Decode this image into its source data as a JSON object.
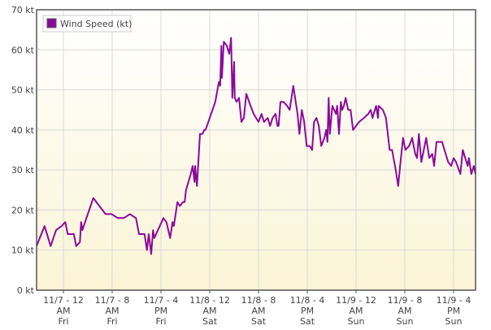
{
  "chart_data": {
    "type": "line",
    "series": [
      {
        "name": "Wind Speed (kt)",
        "color": "#8b0a9b",
        "x": [
          -4.4,
          -3.1,
          -2.1,
          -1.2,
          -0.3,
          0.3,
          0.7,
          1.7,
          2.1,
          2.7,
          2.9,
          3.1,
          4.9,
          6.9,
          7.9,
          8.9,
          9.9,
          10.9,
          11.9,
          12.4,
          13.3,
          13.7,
          14,
          14.4,
          14.7,
          14.9,
          16.4,
          16.9,
          17.5,
          17.9,
          18.1,
          18.7,
          19.1,
          19.6,
          19.9,
          20.1,
          20.9,
          21.2,
          21.5,
          21.6,
          21.9,
          22.4,
          22.8,
          23.1,
          23.3,
          24,
          24.9,
          25.5,
          25.7,
          25.9,
          26,
          26.3,
          26.8,
          27.2,
          27.5,
          27.7,
          28,
          28.1,
          28.4,
          28.8,
          29.2,
          29.6,
          30,
          30.7,
          31.2,
          32,
          32.5,
          32.9,
          33.5,
          33.9,
          34.3,
          34.8,
          35.1,
          35.3,
          35.6,
          36.1,
          36.7,
          37.1,
          37.7,
          38.4,
          38.7,
          39.1,
          39.5,
          39.9,
          40.4,
          40.8,
          41.1,
          41.5,
          41.9,
          42.3,
          42.8,
          43.1,
          43.3,
          43.5,
          43.7,
          44.1,
          44.7,
          44.9,
          45.2,
          45.5,
          45.7,
          46,
          46.3,
          46.7,
          47.1,
          47.5,
          48,
          48.5,
          49.3,
          50,
          50.4,
          50.7,
          50.9,
          51.3,
          51.6,
          51.7,
          52.4,
          52.9,
          53.5,
          53.9,
          54.5,
          54.9,
          55.3,
          55.7,
          56.1,
          56.7,
          57.2,
          57.7,
          58,
          58.3,
          58.7,
          59.1,
          59.5,
          60,
          60.5,
          60.8,
          61.2,
          61.7,
          62.1,
          62.7,
          63.1,
          63.6,
          64,
          64.4,
          65.1,
          65.5,
          65.9,
          66.3,
          66.5,
          66.9,
          67.3,
          67.6
        ],
        "values": [
          11,
          16,
          11,
          15,
          16,
          17,
          14,
          14,
          11,
          12,
          17,
          15,
          23,
          19,
          19,
          18,
          18,
          19,
          18,
          14,
          14,
          10,
          14,
          9,
          15,
          13,
          18,
          17,
          13,
          17,
          16,
          22,
          21,
          22,
          22,
          25,
          29,
          31,
          27,
          31,
          26,
          39,
          39,
          40,
          40,
          43,
          47,
          52,
          51,
          61,
          53,
          62,
          61,
          59,
          63,
          48,
          57,
          48,
          47,
          48,
          42,
          43,
          49,
          46,
          44,
          42,
          44,
          42,
          43,
          41,
          43,
          44,
          41,
          41,
          47,
          47,
          46,
          45,
          51,
          44,
          39,
          45,
          42,
          36,
          36,
          35,
          42,
          43,
          41,
          36,
          38,
          40,
          37,
          48,
          39,
          46,
          44,
          46,
          39,
          47,
          45,
          46,
          48,
          45,
          45,
          40,
          41,
          42,
          43,
          44,
          45,
          43,
          44,
          46,
          43,
          46,
          45,
          43,
          35,
          35,
          30,
          26,
          32,
          38,
          35,
          36,
          38,
          34,
          33,
          39,
          32,
          35,
          38,
          33,
          34,
          31,
          37,
          37,
          37,
          34,
          32,
          31,
          33,
          32,
          29,
          35,
          33,
          31,
          33,
          29,
          31,
          29
        ]
      }
    ],
    "xlim": [
      -4.4,
      67.6
    ],
    "ylim": [
      0,
      70
    ],
    "xticks": [
      {
        "value": 0,
        "label": "11/7 - 12\nAM\nFri"
      },
      {
        "value": 8,
        "label": "11/7 - 8\nAM\nFri"
      },
      {
        "value": 16,
        "label": "11/7 - 4\nPM\nFri"
      },
      {
        "value": 24,
        "label": "11/8 - 12\nAM\nSat"
      },
      {
        "value": 32,
        "label": "11/8 - 8\nAM\nSat"
      },
      {
        "value": 40,
        "label": "11/8 - 4\nPM\nSat"
      },
      {
        "value": 48,
        "label": "11/9 - 12\nAM\nSun"
      },
      {
        "value": 56,
        "label": "11/9 - 8\nAM\nSun"
      },
      {
        "value": 64,
        "label": "11/9 - 4\nPM\nSun"
      }
    ],
    "yticks": [
      {
        "value": 0,
        "label": "0 kt"
      },
      {
        "value": 10,
        "label": "10 kt"
      },
      {
        "value": 20,
        "label": "20 kt"
      },
      {
        "value": 30,
        "label": "30 kt"
      },
      {
        "value": 40,
        "label": "40 kt"
      },
      {
        "value": 50,
        "label": "50 kt"
      },
      {
        "value": 60,
        "label": "60 kt"
      },
      {
        "value": 70,
        "label": "70 kt"
      }
    ],
    "grid": true,
    "legend": "top-left"
  }
}
